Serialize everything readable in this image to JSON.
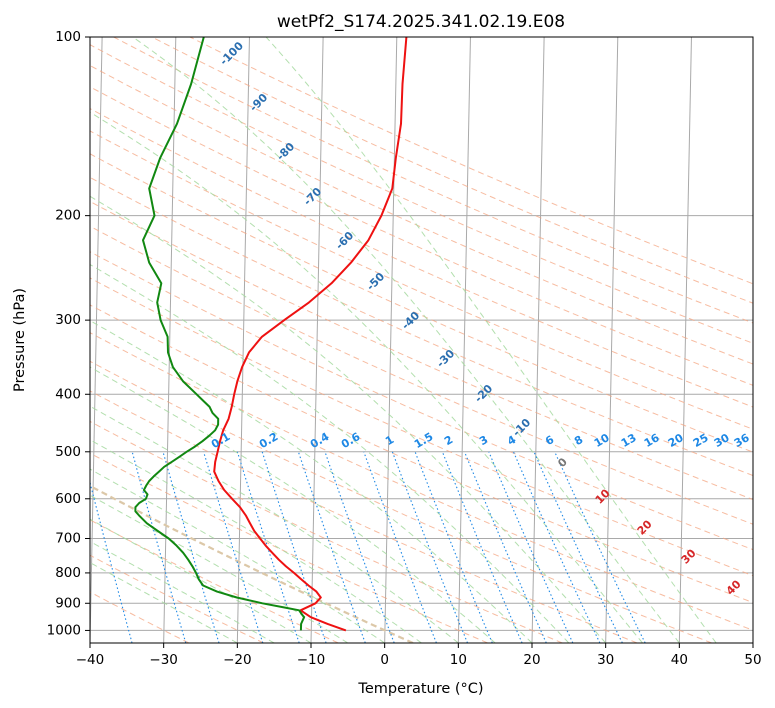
{
  "chart_data": {
    "type": "line",
    "title": "wetPf2_S174.2025.341.02.19.E08",
    "xlabel": "Temperature (°C)",
    "ylabel": "Pressure (hPa)",
    "xlim": [
      -40,
      50
    ],
    "ylim": [
      1050,
      100
    ],
    "y_scale": "log",
    "x_ticks": [
      -40,
      -30,
      -20,
      -10,
      0,
      10,
      20,
      30,
      40,
      50
    ],
    "y_ticks": [
      100,
      200,
      300,
      400,
      500,
      600,
      700,
      800,
      900,
      1000
    ],
    "grid": true,
    "series": [
      {
        "kind": "temperature",
        "color": "#ee1111",
        "p": [
          1000,
          975,
          950,
          925,
          900,
          880,
          860,
          840,
          820,
          800,
          780,
          760,
          740,
          720,
          700,
          680,
          660,
          640,
          620,
          600,
          580,
          560,
          540,
          520,
          500,
          480,
          460,
          440,
          420,
          400,
          380,
          360,
          340,
          320,
          300,
          280,
          260,
          240,
          220,
          200,
          180,
          160,
          140,
          120,
          100
        ],
        "t": [
          -5.3,
          -7.8,
          -10.1,
          -11.5,
          -9.5,
          -8.8,
          -9.4,
          -10.5,
          -11.5,
          -12.5,
          -13.6,
          -14.6,
          -15.5,
          -16.4,
          -17.2,
          -18.0,
          -18.6,
          -19.2,
          -20.0,
          -21.1,
          -22.2,
          -23.0,
          -23.6,
          -23.5,
          -23.2,
          -22.9,
          -22.5,
          -21.8,
          -21.4,
          -21.1,
          -20.7,
          -20.1,
          -19.2,
          -17.5,
          -14.5,
          -11.2,
          -8.2,
          -5.6,
          -3.3,
          -1.6,
          -0.2,
          0.2,
          0.8,
          0.9,
          1.3
        ]
      },
      {
        "kind": "dewpoint",
        "color": "#118811",
        "p": [
          1000,
          975,
          950,
          940,
          925,
          915,
          900,
          880,
          860,
          840,
          820,
          800,
          780,
          760,
          740,
          720,
          700,
          680,
          660,
          640,
          630,
          620,
          610,
          600,
          590,
          580,
          570,
          560,
          550,
          540,
          530,
          520,
          510,
          500,
          490,
          480,
          470,
          460,
          450,
          440,
          430,
          420,
          410,
          400,
          380,
          360,
          340,
          320,
          300,
          280,
          260,
          240,
          220,
          200,
          180,
          160,
          140,
          120,
          100
        ],
        "t": [
          -11.4,
          -11.4,
          -11.0,
          -11.3,
          -11.7,
          -13.7,
          -16.7,
          -20.2,
          -22.9,
          -24.8,
          -25.4,
          -25.8,
          -26.3,
          -26.9,
          -27.6,
          -28.5,
          -29.6,
          -31.1,
          -32.6,
          -33.7,
          -34.2,
          -34.2,
          -33.7,
          -32.8,
          -32.6,
          -33.1,
          -32.8,
          -32.4,
          -31.8,
          -31.1,
          -30.4,
          -29.4,
          -28.4,
          -27.4,
          -26.3,
          -25.3,
          -24.4,
          -23.6,
          -23.2,
          -23.2,
          -24.0,
          -24.4,
          -25.3,
          -26.2,
          -28.1,
          -29.5,
          -30.2,
          -30.3,
          -31.3,
          -31.8,
          -31.3,
          -33.0,
          -33.9,
          -32.4,
          -33.2,
          -31.8,
          -29.6,
          -27.8,
          -26.2
        ]
      }
    ],
    "dry_adiabat_labels": [
      "-100",
      "-90",
      "-80",
      "-70",
      "-60",
      "-50",
      "-40",
      "-30",
      "-20",
      "-10"
    ],
    "mixing_ratio_labels": [
      "0.1",
      "0.2",
      "0.4",
      "0.6",
      "1",
      "1.5",
      "2",
      "3",
      "4",
      "6",
      "8",
      "10",
      "13",
      "16",
      "20",
      "25",
      "30",
      "36"
    ],
    "moist_adiabat_labels": [
      "0",
      "10",
      "20",
      "30",
      "40"
    ],
    "colors": {
      "isotherm": "#a9a9a9",
      "isobar": "#a9a9a9",
      "dry_adiabat": "#f4a582",
      "moist_adiabat": "#a6d9a0",
      "mixing_ratio": "#1e88e5",
      "dry_label": "#2b6fb0",
      "moist_label": "#d62728",
      "zero_label": "#777777",
      "thick_adiabat": "#dcc8a8"
    }
  }
}
